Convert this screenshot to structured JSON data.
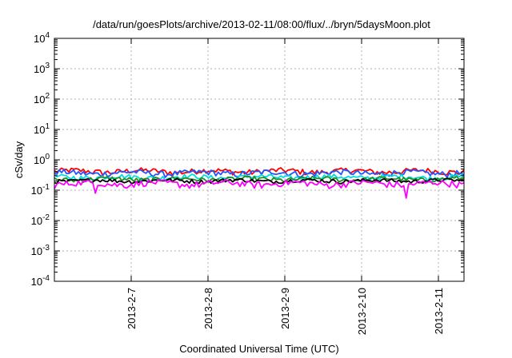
{
  "chart_data": {
    "type": "line",
    "title": "/data/run/goesPlots/archive/2013-02-11/08:00/flux/../bryn/5daysMoon.plot",
    "xlabel": "Coordinated Universal Time (UTC)",
    "ylabel": "cSv/day",
    "y_scale": "log",
    "ylim_exponent": [
      -4,
      4
    ],
    "y_tick_base": "10",
    "y_tick_exponents": [
      "-4",
      "-3",
      "-2",
      "-1",
      "0",
      "1",
      "2",
      "3",
      "4"
    ],
    "x_range_days": [
      "2013-02-06",
      "2013-02-11 08:00"
    ],
    "x_ticks": [
      "2013-2-7",
      "2013-2-8",
      "2013-2-9",
      "2013-2-10",
      "2013-2-11"
    ],
    "grid": true,
    "series": [
      {
        "color": "#ff0000",
        "base": 0.42,
        "noise": 0.09,
        "dips": []
      },
      {
        "color": "#2255ff",
        "base": 0.37,
        "noise": 0.08,
        "dips": []
      },
      {
        "color": "#00dddd",
        "base": 0.27,
        "noise": 0.05,
        "dips": []
      },
      {
        "color": "#228B22",
        "base": 0.23,
        "noise": 0.04,
        "dips": []
      },
      {
        "color": "#000000",
        "base": 0.205,
        "noise": 0.03,
        "dips": []
      },
      {
        "color": "#ff00ff",
        "base": 0.165,
        "noise": 0.04,
        "dips": [
          [
            0.1,
            0.08
          ],
          [
            0.86,
            0.055
          ]
        ]
      }
    ]
  }
}
